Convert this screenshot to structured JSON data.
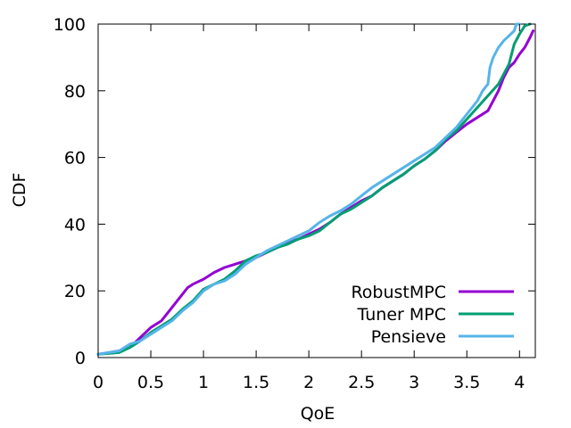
{
  "chart_data": {
    "type": "line",
    "title": "",
    "xlabel": "QoE",
    "ylabel": "CDF",
    "xlim": [
      0,
      4.15
    ],
    "ylim": [
      0,
      100
    ],
    "xticks": [
      0,
      0.5,
      1,
      1.5,
      2,
      2.5,
      3,
      3.5,
      4
    ],
    "xtick_labels": [
      "0",
      "0.5",
      "1",
      "1.5",
      "2",
      "2.5",
      "3",
      "3.5",
      "4"
    ],
    "yticks": [
      0,
      20,
      40,
      60,
      80,
      100
    ],
    "ytick_labels": [
      "0",
      "20",
      "40",
      "60",
      "80",
      "100"
    ],
    "grid": false,
    "legend_position": "bottom-right",
    "series": [
      {
        "name": "RobustMPC",
        "color": "#9400d3",
        "x": [
          0,
          0.2,
          0.3,
          0.4,
          0.5,
          0.6,
          0.7,
          0.75,
          0.8,
          0.85,
          0.9,
          1.0,
          1.1,
          1.2,
          1.3,
          1.4,
          1.5,
          1.6,
          1.7,
          1.8,
          1.9,
          2.0,
          2.1,
          2.2,
          2.3,
          2.4,
          2.5,
          2.6,
          2.7,
          2.8,
          2.9,
          3.0,
          3.1,
          3.2,
          3.3,
          3.4,
          3.5,
          3.6,
          3.7,
          3.75,
          3.8,
          3.85,
          3.9,
          3.95,
          4.0,
          4.05,
          4.1,
          4.13
        ],
        "y": [
          1,
          2,
          3,
          6,
          9,
          11,
          15,
          17,
          19,
          21,
          22,
          23.5,
          25.5,
          27,
          28,
          29,
          30,
          31.5,
          33,
          34.5,
          35.5,
          37,
          38.5,
          40.5,
          43,
          45,
          47,
          48.5,
          51,
          53,
          55,
          57.5,
          59.5,
          62,
          65,
          67.5,
          70,
          72,
          74,
          77,
          80,
          84,
          87,
          88.5,
          91,
          93,
          96,
          98
        ]
      },
      {
        "name": "Tuner MPC",
        "color": "#009e73",
        "x": [
          0,
          0.2,
          0.3,
          0.4,
          0.5,
          0.6,
          0.7,
          0.8,
          0.9,
          1.0,
          1.1,
          1.2,
          1.3,
          1.4,
          1.5,
          1.6,
          1.7,
          1.8,
          1.9,
          2.0,
          2.1,
          2.2,
          2.3,
          2.4,
          2.5,
          2.6,
          2.7,
          2.8,
          2.9,
          3.0,
          3.1,
          3.2,
          3.3,
          3.4,
          3.5,
          3.6,
          3.7,
          3.8,
          3.9,
          3.95,
          4.0,
          4.05,
          4.1
        ],
        "y": [
          1,
          1.5,
          3,
          5,
          7.5,
          9.5,
          11.5,
          14.5,
          17,
          20.5,
          22,
          23.5,
          26,
          29,
          30.5,
          31.5,
          33,
          34,
          35.5,
          36.5,
          38,
          40.5,
          43,
          44.5,
          46.5,
          48.5,
          51,
          53,
          55,
          57.5,
          59.5,
          62,
          65.5,
          68,
          71.5,
          75,
          78.5,
          82,
          88,
          94,
          97,
          99.5,
          100
        ]
      },
      {
        "name": "Pensieve",
        "color": "#56b4e9",
        "x": [
          0,
          0.2,
          0.3,
          0.4,
          0.5,
          0.6,
          0.7,
          0.8,
          0.9,
          1.0,
          1.1,
          1.2,
          1.3,
          1.4,
          1.5,
          1.6,
          1.7,
          1.8,
          1.9,
          2.0,
          2.1,
          2.2,
          2.3,
          2.4,
          2.5,
          2.6,
          2.7,
          2.8,
          2.9,
          3.0,
          3.1,
          3.2,
          3.3,
          3.4,
          3.5,
          3.6,
          3.65,
          3.7,
          3.72,
          3.75,
          3.8,
          3.85,
          3.9,
          3.95,
          3.97,
          4.0
        ],
        "y": [
          1,
          2,
          4,
          5,
          7,
          9,
          11,
          14,
          16.5,
          20,
          22,
          23,
          25,
          28,
          30,
          32,
          33.5,
          35,
          36.5,
          38,
          40.5,
          42.5,
          44,
          46,
          48.5,
          51,
          53,
          55,
          57,
          59,
          61,
          63,
          66,
          69,
          73,
          77,
          80,
          82,
          87,
          90,
          93,
          95,
          96.5,
          98,
          100,
          100
        ]
      }
    ]
  }
}
